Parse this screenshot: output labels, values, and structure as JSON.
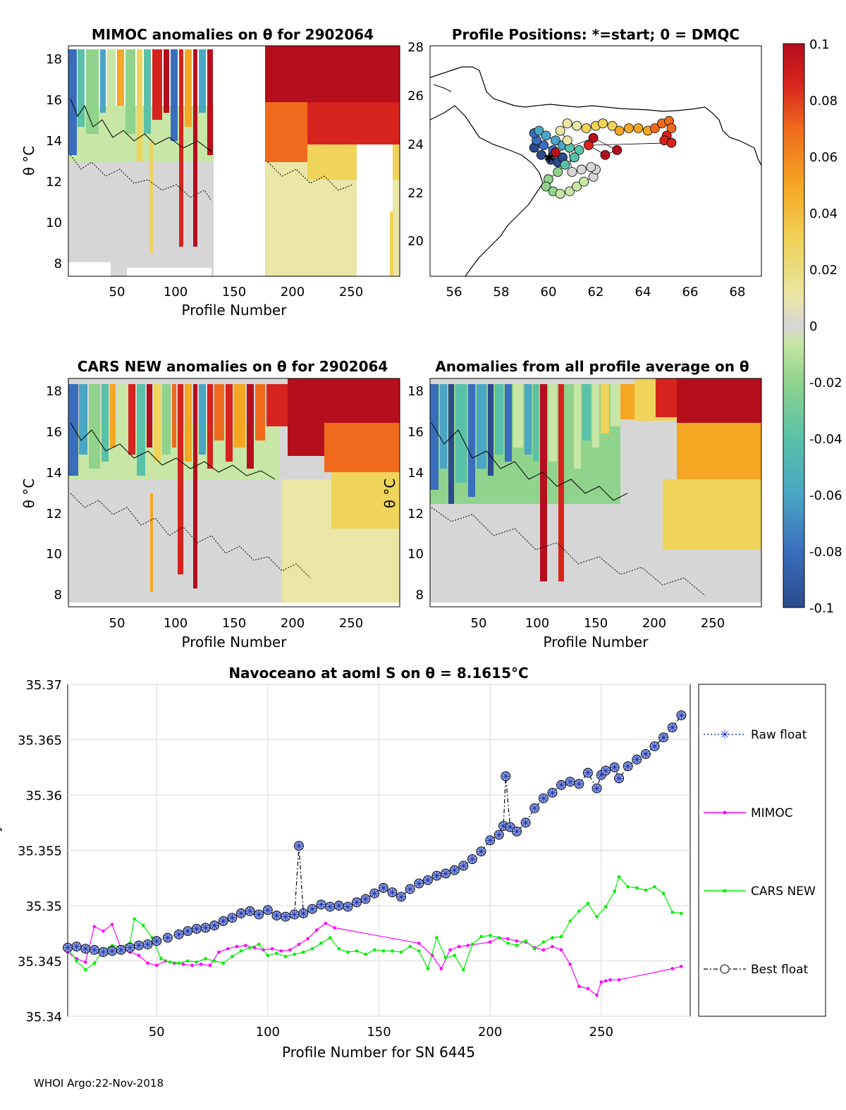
{
  "footer": "WHOI Argo:22-Nov-2018",
  "colors": {
    "raw_float": "#2233cc",
    "mimoc": "#ff00ff",
    "cars_new": "#00ee00",
    "best_float": "#000000",
    "colormap": [
      "#2c4b8c",
      "#3a6ebc",
      "#4aa6c4",
      "#59c1a8",
      "#8fd38c",
      "#c8e6a5",
      "#d6d6d6",
      "#e9e6a6",
      "#f0d35a",
      "#f5a623",
      "#ef6a1d",
      "#d7231d",
      "#b50f1e"
    ]
  },
  "panels": {
    "mimoc": {
      "title": "MIMOC anomalies on θ  for 2902064",
      "ylabel": "θ °C",
      "xlabel": "Profile Number",
      "xticks": [
        "50",
        "100",
        "150",
        "200",
        "250"
      ],
      "yticks": [
        "8",
        "10",
        "12",
        "14",
        "16",
        "18"
      ]
    },
    "map": {
      "title": "Profile Positions: *=start; 0 = DMQC",
      "xticks": [
        "56",
        "58",
        "60",
        "62",
        "64",
        "66",
        "68"
      ],
      "yticks": [
        "20",
        "22",
        "24",
        "26",
        "28"
      ]
    },
    "cars": {
      "title": "CARS NEW anomalies on θ for 2902064",
      "ylabel": "θ °C",
      "xlabel": "Profile Number",
      "xticks": [
        "50",
        "100",
        "150",
        "200",
        "250"
      ],
      "yticks": [
        "8",
        "10",
        "12",
        "14",
        "16",
        "18"
      ]
    },
    "avg": {
      "title": "Anomalies from all profile average on θ",
      "ylabel": "θ °C",
      "xlabel": "Profile Number",
      "xticks": [
        "50",
        "100",
        "150",
        "200",
        "250"
      ],
      "yticks": [
        "8",
        "10",
        "12",
        "14",
        "16",
        "18"
      ]
    },
    "colorbar": {
      "ticks": [
        "0.1",
        "0.08",
        "0.06",
        "0.04",
        "0.02",
        "0",
        "-0.02",
        "-0.04",
        "-0.06",
        "-0.08",
        "-0.1"
      ]
    }
  },
  "chart_data": [
    {
      "type": "heatmap",
      "title": "MIMOC anomalies on θ  for 2902064",
      "xlabel": "Profile Number",
      "ylabel": "θ °C",
      "xlim": [
        10,
        290
      ],
      "ylim": [
        7.5,
        18.6
      ],
      "clim": [
        -0.1,
        0.1
      ],
      "gaps": [
        [
          133,
          176
        ]
      ]
    },
    {
      "type": "scatter",
      "title": "Profile Positions: *=start; 0 = DMQC",
      "xlim": [
        55,
        69
      ],
      "ylim": [
        18.5,
        28
      ],
      "points": [
        [
          59.4,
          23.8
        ],
        [
          59.7,
          23.5
        ],
        [
          60.1,
          23.3
        ],
        [
          60.4,
          23.2
        ],
        [
          60.6,
          23.4
        ],
        [
          60.2,
          23.7
        ],
        [
          59.8,
          23.9
        ],
        [
          59.5,
          24.1
        ],
        [
          59.4,
          24.4
        ],
        [
          59.6,
          24.5
        ],
        [
          59.9,
          24.3
        ],
        [
          60.3,
          24.1
        ],
        [
          60.6,
          23.9
        ],
        [
          60.9,
          23.8
        ],
        [
          61.3,
          23.7
        ],
        [
          61.1,
          23.4
        ],
        [
          60.7,
          23.1
        ],
        [
          60.4,
          22.8
        ],
        [
          60.0,
          22.5
        ],
        [
          59.9,
          22.2
        ],
        [
          60.2,
          22.0
        ],
        [
          60.5,
          21.9
        ],
        [
          60.9,
          22.0
        ],
        [
          61.2,
          22.2
        ],
        [
          61.5,
          22.4
        ],
        [
          61.9,
          22.6
        ],
        [
          62.0,
          22.9
        ],
        [
          61.8,
          23.0
        ],
        [
          61.4,
          22.9
        ],
        [
          61.0,
          22.8
        ],
        [
          60.8,
          24.1
        ],
        [
          60.5,
          24.5
        ],
        [
          60.8,
          24.8
        ],
        [
          61.2,
          24.7
        ],
        [
          61.6,
          24.6
        ],
        [
          62.0,
          24.7
        ],
        [
          62.3,
          24.8
        ],
        [
          62.7,
          24.7
        ],
        [
          63.0,
          24.5
        ],
        [
          63.4,
          24.6
        ],
        [
          63.8,
          24.6
        ],
        [
          64.2,
          24.5
        ],
        [
          64.5,
          24.6
        ],
        [
          64.8,
          24.8
        ],
        [
          65.1,
          24.9
        ],
        [
          65.2,
          24.6
        ],
        [
          65.0,
          24.3
        ],
        [
          64.9,
          24.1
        ],
        [
          65.2,
          24.0
        ],
        [
          61.7,
          23.9
        ],
        [
          62.4,
          23.5
        ],
        [
          62.9,
          23.7
        ],
        [
          61.9,
          24.2
        ],
        [
          60.3,
          23.6
        ]
      ]
    },
    {
      "type": "heatmap",
      "title": "CARS NEW anomalies on θ for 2902064",
      "xlabel": "Profile Number",
      "ylabel": "θ °C",
      "xlim": [
        10,
        290
      ],
      "ylim": [
        7.5,
        18.6
      ],
      "clim": [
        -0.1,
        0.1
      ]
    },
    {
      "type": "heatmap",
      "title": "Anomalies from all profile average on θ",
      "xlabel": "Profile Number",
      "ylabel": "θ °C",
      "xlim": [
        10,
        290
      ],
      "ylim": [
        7.5,
        18.6
      ],
      "clim": [
        -0.1,
        0.1
      ]
    },
    {
      "type": "line",
      "title": "Navoceano at aoml S on θ = 8.1615°C",
      "xlabel": "Profile Number for SN 6445",
      "ylabel": "Salinity",
      "xlim": [
        10,
        290
      ],
      "ylim": [
        35.34,
        35.37
      ],
      "xticks": [
        50,
        100,
        150,
        200,
        250
      ],
      "yticks": [
        35.34,
        35.345,
        35.35,
        35.355,
        35.36,
        35.365,
        35.37
      ],
      "xtick_labels": [
        "50",
        "100",
        "150",
        "200",
        "250"
      ],
      "ytick_labels": [
        "35.34",
        "35.345",
        "35.35",
        "35.355",
        "35.36",
        "35.365",
        "35.37"
      ],
      "legend": [
        "Raw float",
        "MIMOC",
        "CARS NEW",
        "Best float"
      ],
      "series": [
        {
          "name": "Best float",
          "x": [
            10,
            14,
            18,
            22,
            26,
            30,
            34,
            38,
            42,
            46,
            50,
            55,
            60,
            64,
            68,
            72,
            76,
            80,
            84,
            88,
            92,
            96,
            100,
            104,
            108,
            112,
            114,
            116,
            120,
            124,
            128,
            132,
            136,
            140,
            144,
            148,
            152,
            156,
            160,
            164,
            168,
            172,
            176,
            180,
            184,
            188,
            192,
            196,
            200,
            204,
            206,
            207,
            209,
            212,
            216,
            220,
            224,
            228,
            232,
            236,
            240,
            244,
            248,
            250,
            252,
            256,
            258,
            262,
            266,
            270,
            274,
            278,
            282,
            286
          ],
          "y": [
            35.3462,
            35.3463,
            35.3461,
            35.346,
            35.3458,
            35.3459,
            35.346,
            35.3462,
            35.3464,
            35.3465,
            35.3468,
            35.3471,
            35.3474,
            35.3477,
            35.3479,
            35.348,
            35.3482,
            35.3486,
            35.3489,
            35.3493,
            35.3495,
            35.3492,
            35.3496,
            35.3491,
            35.349,
            35.3492,
            35.3554,
            35.3493,
            35.3497,
            35.3501,
            35.3499,
            35.35,
            35.3499,
            35.3503,
            35.3506,
            35.3511,
            35.3516,
            35.3512,
            35.3508,
            35.3515,
            35.352,
            35.3523,
            35.3527,
            35.3529,
            35.3532,
            35.3536,
            35.3542,
            35.3549,
            35.3559,
            35.3564,
            35.3572,
            35.3617,
            35.3571,
            35.3567,
            35.3575,
            35.3588,
            35.3597,
            35.3602,
            35.3609,
            35.3612,
            35.361,
            35.362,
            35.3606,
            35.3618,
            35.3622,
            35.3625,
            35.3615,
            35.3626,
            35.3632,
            35.3637,
            35.3644,
            35.3652,
            35.3661,
            35.3672
          ]
        },
        {
          "name": "MIMOC",
          "x": [
            10,
            14,
            18,
            22,
            26,
            30,
            34,
            38,
            42,
            46,
            50,
            54,
            58,
            62,
            66,
            70,
            74,
            78,
            82,
            86,
            90,
            94,
            98,
            102,
            106,
            110,
            114,
            118,
            122,
            126,
            130,
            168,
            174,
            178,
            182,
            186,
            190,
            200,
            204,
            208,
            212,
            216,
            220,
            224,
            228,
            232,
            236,
            240,
            244,
            248,
            250,
            252,
            254,
            258,
            282,
            286
          ],
          "y": [
            35.3458,
            35.3452,
            35.3449,
            35.3481,
            35.3477,
            35.3483,
            35.3461,
            35.3458,
            35.3455,
            35.3448,
            35.3446,
            35.345,
            35.3448,
            35.3447,
            35.3446,
            35.3447,
            35.3446,
            35.3458,
            35.3461,
            35.3463,
            35.3464,
            35.3462,
            35.346,
            35.3461,
            35.3459,
            35.346,
            35.3465,
            35.347,
            35.3478,
            35.3484,
            35.348,
            35.3466,
            35.3455,
            35.3443,
            35.346,
            35.3463,
            35.3464,
            35.3467,
            35.3471,
            35.347,
            35.3468,
            35.3467,
            35.3462,
            35.346,
            35.3463,
            35.346,
            35.3447,
            35.3427,
            35.3425,
            35.3419,
            35.3431,
            35.3432,
            35.3433,
            35.3433,
            35.3443,
            35.3445
          ]
        },
        {
          "name": "CARS NEW",
          "x": [
            10,
            14,
            18,
            22,
            26,
            30,
            34,
            38,
            40,
            44,
            48,
            52,
            56,
            60,
            64,
            68,
            72,
            76,
            80,
            84,
            88,
            92,
            96,
            100,
            104,
            108,
            112,
            116,
            120,
            124,
            128,
            132,
            136,
            140,
            144,
            148,
            152,
            156,
            160,
            164,
            168,
            172,
            176,
            180,
            184,
            188,
            192,
            196,
            200,
            204,
            208,
            212,
            216,
            220,
            224,
            228,
            232,
            236,
            240,
            244,
            248,
            252,
            256,
            258,
            262,
            266,
            270,
            274,
            278,
            282,
            286
          ],
          "y": [
            35.3462,
            35.345,
            35.3442,
            35.3448,
            35.346,
            35.3464,
            35.3463,
            35.3466,
            35.3488,
            35.3482,
            35.3471,
            35.3452,
            35.3449,
            35.3448,
            35.345,
            35.3449,
            35.3452,
            35.345,
            35.3448,
            35.3454,
            35.3459,
            35.3462,
            35.3465,
            35.3455,
            35.3457,
            35.3454,
            35.3456,
            35.3458,
            35.3461,
            35.3466,
            35.3471,
            35.3461,
            35.3458,
            35.3459,
            35.3456,
            35.346,
            35.3459,
            35.3459,
            35.3458,
            35.3463,
            35.3459,
            35.3443,
            35.3471,
            35.3453,
            35.3455,
            35.3442,
            35.3465,
            35.3472,
            35.3473,
            35.3471,
            35.3466,
            35.3464,
            35.3468,
            35.3461,
            35.3467,
            35.3471,
            35.3472,
            35.3486,
            35.3495,
            35.3502,
            35.349,
            35.3499,
            35.3513,
            35.3526,
            35.3517,
            35.3516,
            35.3514,
            35.3517,
            35.3511,
            35.3494,
            35.3493
          ]
        }
      ]
    }
  ]
}
